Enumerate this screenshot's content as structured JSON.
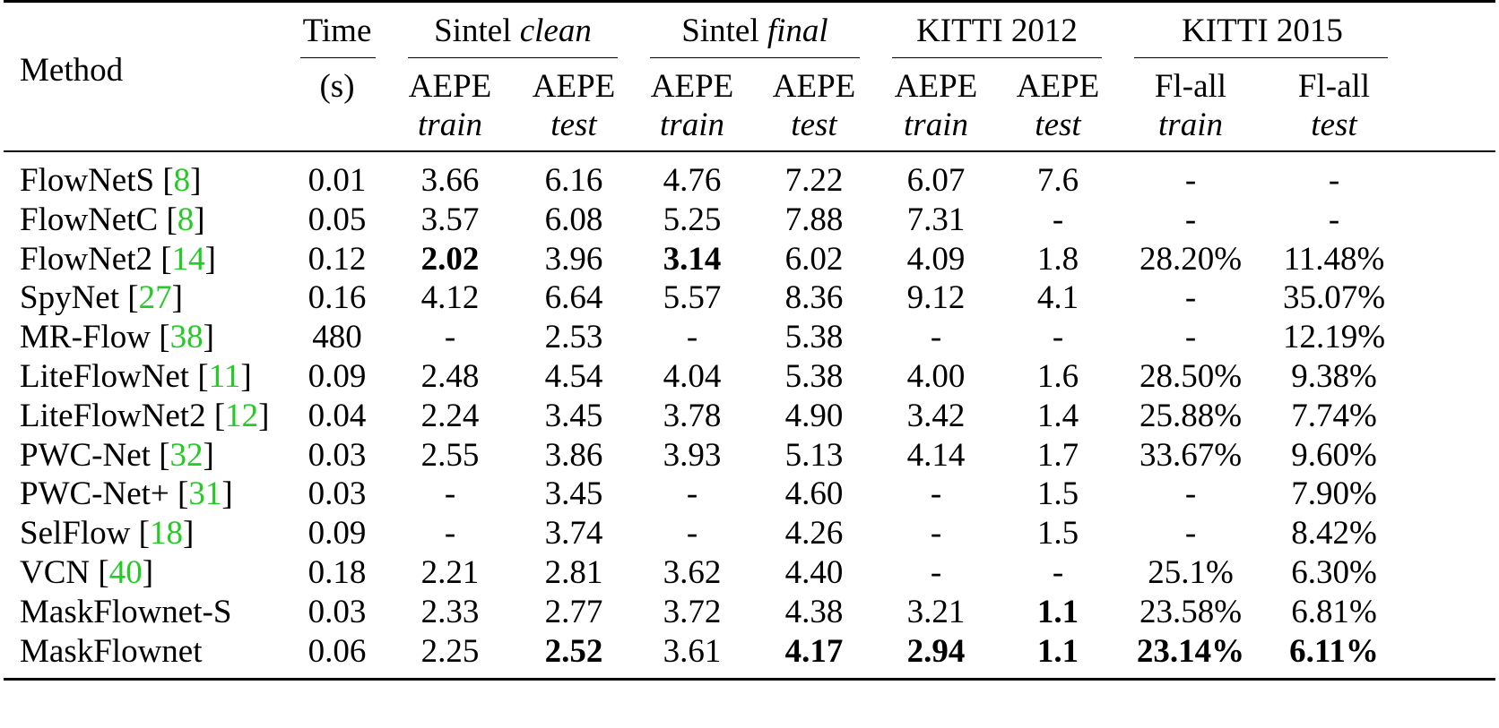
{
  "table": {
    "method_header": "Method",
    "time_header": "Time",
    "time_unit": "(s)",
    "groups": [
      {
        "name": "Sintel ",
        "name_italic": "clean"
      },
      {
        "name": "Sintel ",
        "name_italic": "final"
      },
      {
        "name": "KITTI 2012",
        "name_italic": ""
      },
      {
        "name": "KITTI 2015",
        "name_italic": ""
      }
    ],
    "subheaders": [
      {
        "metric": "AEPE",
        "split": "train"
      },
      {
        "metric": "AEPE",
        "split": "test"
      },
      {
        "metric": "AEPE",
        "split": "train"
      },
      {
        "metric": "AEPE",
        "split": "test"
      },
      {
        "metric": "AEPE",
        "split": "train"
      },
      {
        "metric": "AEPE",
        "split": "test"
      },
      {
        "metric": "Fl-all",
        "split": "train"
      },
      {
        "metric": "Fl-all",
        "split": "test"
      }
    ],
    "rows": [
      {
        "name": "FlowNetS ",
        "ref": "8",
        "time": "0.01",
        "values": [
          "3.66",
          "6.16",
          "4.76",
          "7.22",
          "6.07",
          "7.6",
          "-",
          "-"
        ],
        "bold": []
      },
      {
        "name": "FlowNetC ",
        "ref": "8",
        "time": "0.05",
        "values": [
          "3.57",
          "6.08",
          "5.25",
          "7.88",
          "7.31",
          "-",
          "-",
          "-"
        ],
        "bold": []
      },
      {
        "name": "FlowNet2 ",
        "ref": "14",
        "time": "0.12",
        "values": [
          "2.02",
          "3.96",
          "3.14",
          "6.02",
          "4.09",
          "1.8",
          "28.20%",
          "11.48%"
        ],
        "bold": [
          0,
          2
        ]
      },
      {
        "name": "SpyNet ",
        "ref": "27",
        "time": "0.16",
        "values": [
          "4.12",
          "6.64",
          "5.57",
          "8.36",
          "9.12",
          "4.1",
          "-",
          "35.07%"
        ],
        "bold": []
      },
      {
        "name": "MR-Flow ",
        "ref": "38",
        "time": "480",
        "values": [
          "-",
          "2.53",
          "-",
          "5.38",
          "-",
          "-",
          "-",
          "12.19%"
        ],
        "bold": []
      },
      {
        "name": "LiteFlowNet ",
        "ref": "11",
        "time": "0.09",
        "values": [
          "2.48",
          "4.54",
          "4.04",
          "5.38",
          "4.00",
          "1.6",
          "28.50%",
          "9.38%"
        ],
        "bold": []
      },
      {
        "name": "LiteFlowNet2 ",
        "ref": "12",
        "time": "0.04",
        "values": [
          "2.24",
          "3.45",
          "3.78",
          "4.90",
          "3.42",
          "1.4",
          "25.88%",
          "7.74%"
        ],
        "bold": []
      },
      {
        "name": "PWC-Net ",
        "ref": "32",
        "time": "0.03",
        "values": [
          "2.55",
          "3.86",
          "3.93",
          "5.13",
          "4.14",
          "1.7",
          "33.67%",
          "9.60%"
        ],
        "bold": []
      },
      {
        "name": "PWC-Net+ ",
        "ref": "31",
        "time": "0.03",
        "values": [
          "-",
          "3.45",
          "-",
          "4.60",
          "-",
          "1.5",
          "-",
          "7.90%"
        ],
        "bold": []
      },
      {
        "name": "SelFlow ",
        "ref": "18",
        "time": "0.09",
        "values": [
          "-",
          "3.74",
          "-",
          "4.26",
          "-",
          "1.5",
          "-",
          "8.42%"
        ],
        "bold": []
      },
      {
        "name": "VCN ",
        "ref": "40",
        "time": "0.18",
        "values": [
          "2.21",
          "2.81",
          "3.62",
          "4.40",
          "-",
          "-",
          "25.1%",
          "6.30%"
        ],
        "bold": []
      },
      {
        "name": "MaskFlownet-S",
        "ref": "",
        "time": "0.03",
        "values": [
          "2.33",
          "2.77",
          "3.72",
          "4.38",
          "3.21",
          "1.1",
          "23.58%",
          "6.81%"
        ],
        "bold": [
          5
        ]
      },
      {
        "name": "MaskFlownet",
        "ref": "",
        "time": "0.06",
        "values": [
          "2.25",
          "2.52",
          "3.61",
          "4.17",
          "2.94",
          "1.1",
          "23.14%",
          "6.11%"
        ],
        "bold": [
          1,
          3,
          4,
          5,
          6,
          7
        ]
      }
    ]
  }
}
